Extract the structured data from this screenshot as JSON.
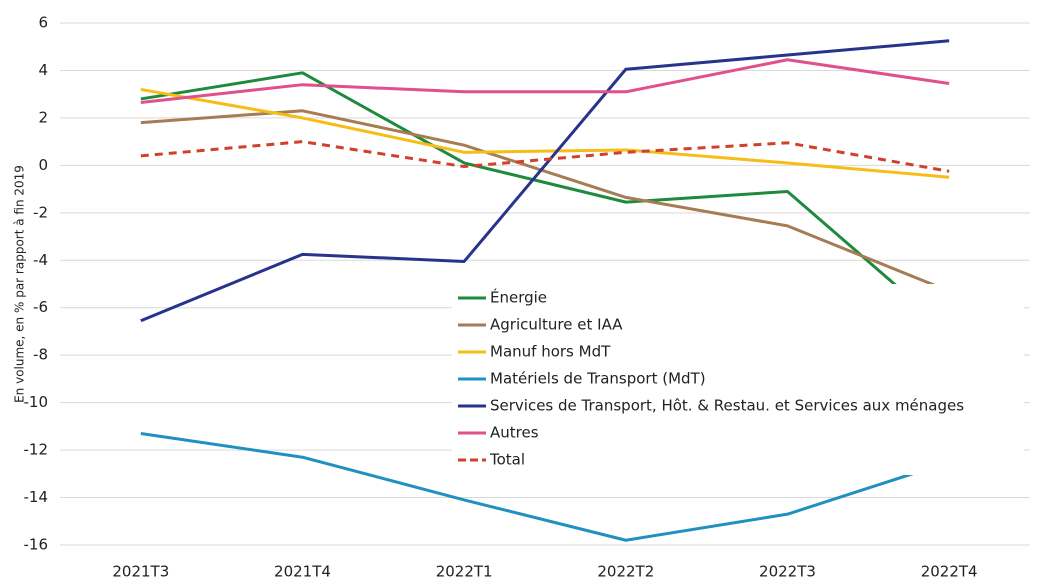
{
  "chart_data": {
    "type": "line",
    "y_label": "En volume, en % par rapport à fin 2019",
    "categories": [
      "2021T3",
      "2021T4",
      "2022T1",
      "2022T2",
      "2022T3",
      "2022T4"
    ],
    "series": [
      {
        "name": "Énergie",
        "color": "#1e8a3e",
        "values": [
          2.8,
          3.9,
          0.1,
          -1.55,
          -1.1,
          -7.0
        ]
      },
      {
        "name": "Agriculture et IAA",
        "color": "#a67c52",
        "values": [
          1.8,
          2.3,
          0.85,
          -1.35,
          -2.55,
          -5.3
        ]
      },
      {
        "name": "Manuf hors MdT",
        "color": "#f6bd16",
        "values": [
          3.2,
          2.0,
          0.55,
          0.65,
          0.1,
          -0.5
        ]
      },
      {
        "name": "Matériels de Transport (MdT)",
        "color": "#2090c0",
        "values": [
          -11.3,
          -12.3,
          -14.1,
          -15.8,
          -14.7,
          -12.5
        ]
      },
      {
        "name": "Services de Transport, Hôt. & Restau. et Services aux ménages",
        "color": "#27338c",
        "values": [
          -6.55,
          -3.75,
          -4.05,
          4.05,
          4.65,
          5.25
        ]
      },
      {
        "name": "Autres",
        "color": "#e0508a",
        "values": [
          2.65,
          3.4,
          3.1,
          3.1,
          4.45,
          3.45
        ]
      },
      {
        "name": "Total",
        "color": "#d0402a",
        "dashed": true,
        "values": [
          0.4,
          1.0,
          -0.05,
          0.55,
          0.95,
          -0.25
        ]
      }
    ],
    "ylim": [
      -16,
      6
    ],
    "yticks": [
      -16,
      -14,
      -12,
      -10,
      -8,
      -6,
      -4,
      -2,
      0,
      2,
      4,
      6
    ],
    "grid": true,
    "legend": "center"
  }
}
